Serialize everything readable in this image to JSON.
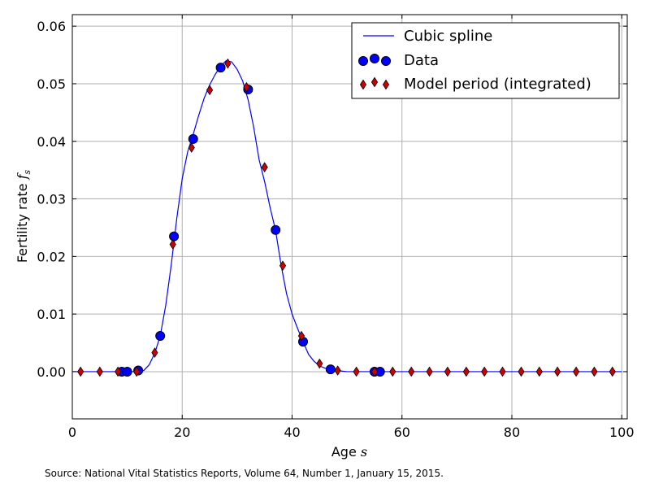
{
  "chart_data": {
    "type": "scatter",
    "xlabel_text": "Age",
    "xlabel_math": "s",
    "ylabel_text": "Fertility rate",
    "ylabel_math": "f",
    "ylabel_math_sub": "s",
    "xlim": [
      0,
      101
    ],
    "ylim": [
      -0.0082,
      0.062
    ],
    "xticks": [
      0,
      20,
      40,
      60,
      80,
      100
    ],
    "xtick_labels": [
      "0",
      "20",
      "40",
      "60",
      "80",
      "100"
    ],
    "yticks": [
      0.0,
      0.01,
      0.02,
      0.03,
      0.04,
      0.05,
      0.06
    ],
    "ytick_labels": [
      "0.00",
      "0.01",
      "0.02",
      "0.03",
      "0.04",
      "0.05",
      "0.06"
    ],
    "grid": true,
    "legend_position": "upper-right",
    "source_note": "Source: National Vital Statistics Reports, Volume 64, Number 1, January 15, 2015.",
    "colors": {
      "spline": "#0000ff",
      "data_fill": "#0000ff",
      "model_fill": "#cc0000",
      "marker_edge": "#000000",
      "grid": "#b0b0b0"
    },
    "series": [
      {
        "name": "Cubic spline",
        "kind": "line",
        "x": [
          0,
          5,
          8,
          9,
          10,
          11,
          12,
          13,
          14,
          15,
          16,
          17,
          18,
          19,
          20,
          21,
          22,
          23,
          24,
          25,
          26,
          27,
          28,
          29,
          30,
          31,
          32,
          33,
          34,
          35,
          36,
          37,
          38,
          39,
          40,
          41,
          42,
          43,
          44,
          45,
          46,
          47,
          48,
          50,
          52,
          55,
          60,
          70,
          80,
          90,
          100
        ],
        "y": [
          0.0,
          0.0,
          0.0,
          0.0,
          0.0,
          0.0,
          0.0,
          0.0002,
          0.0012,
          0.0032,
          0.0062,
          0.0115,
          0.0185,
          0.0265,
          0.0335,
          0.0382,
          0.0412,
          0.0445,
          0.0475,
          0.0498,
          0.0516,
          0.0531,
          0.054,
          0.0538,
          0.0525,
          0.0505,
          0.0472,
          0.0425,
          0.0368,
          0.033,
          0.0285,
          0.0245,
          0.0185,
          0.0135,
          0.01,
          0.0075,
          0.0052,
          0.003,
          0.0018,
          0.001,
          0.0006,
          0.0004,
          0.0002,
          0.0,
          0.0,
          0.0,
          0.0,
          0.0,
          0.0,
          0.0,
          0.0
        ]
      },
      {
        "name": "Data",
        "kind": "scatter",
        "marker": "circle",
        "x": [
          9,
          10,
          12,
          16,
          18.5,
          22,
          27,
          32,
          37,
          42,
          47,
          55,
          56
        ],
        "y": [
          0.0,
          0.0,
          0.0002,
          0.0062,
          0.0235,
          0.0404,
          0.0528,
          0.049,
          0.0246,
          0.0052,
          0.0004,
          0.0,
          0.0
        ]
      },
      {
        "name": "Model period (integrated)",
        "kind": "scatter",
        "marker": "diamond",
        "x": [
          1.5,
          5,
          8.3,
          11.7,
          15,
          18.3,
          21.7,
          25,
          28.3,
          31.7,
          35,
          38.3,
          41.7,
          45,
          48.3,
          51.7,
          55,
          58.3,
          61.7,
          65,
          68.3,
          71.7,
          75,
          78.3,
          81.7,
          85,
          88.3,
          91.7,
          95,
          98.3
        ],
        "y": [
          0.0,
          0.0,
          0.0,
          0.0,
          0.0033,
          0.0221,
          0.0389,
          0.0489,
          0.0535,
          0.0494,
          0.0355,
          0.0184,
          0.0062,
          0.0014,
          0.0002,
          0.0,
          0.0,
          0.0,
          0.0,
          0.0,
          0.0,
          0.0,
          0.0,
          0.0,
          0.0,
          0.0,
          0.0,
          0.0,
          0.0,
          0.0
        ]
      }
    ]
  }
}
